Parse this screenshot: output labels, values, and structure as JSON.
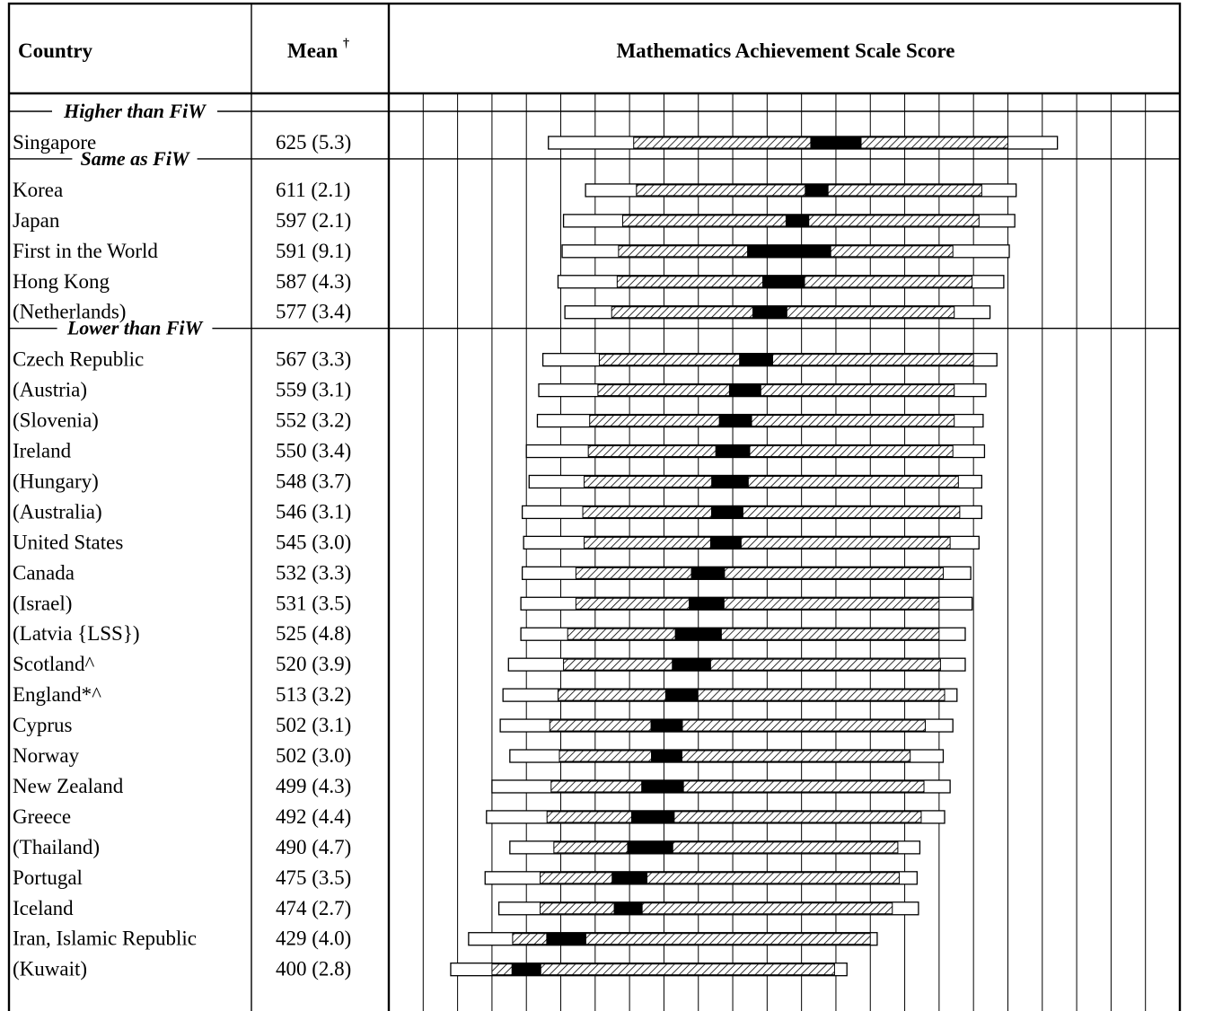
{
  "headers": {
    "country": "Country",
    "mean": "Mean",
    "mean_mark": "†",
    "chart": "Mathematics Achievement Scale Score"
  },
  "colors": {
    "line": "#000000",
    "band": "#ffffff",
    "hatch": "#000000",
    "ci": "#000000"
  },
  "chart_data": {
    "type": "percentile-bar",
    "title": "Mathematics Achievement Scale Score",
    "xlim": [
      300,
      875
    ],
    "gridlines": [
      300,
      325,
      350,
      375,
      400,
      425,
      450,
      475,
      500,
      525,
      550,
      575,
      600,
      625,
      650,
      675,
      700,
      725,
      750,
      775,
      800,
      825,
      850
    ],
    "groups": [
      {
        "label": "Higher than FiW",
        "rows": [
          {
            "country": "Singapore",
            "mean_text": "625 (5.3)",
            "mean": 625,
            "se": 5.3,
            "p5": 416,
            "p25": 478,
            "p75": 750,
            "p95": 786
          }
        ]
      },
      {
        "label": "Same as FiW",
        "rows": [
          {
            "country": "Korea",
            "mean_text": "611 (2.1)",
            "mean": 611,
            "se": 2.1,
            "p5": 443,
            "p25": 480,
            "p75": 731,
            "p95": 756
          },
          {
            "country": "Japan",
            "mean_text": "597 (2.1)",
            "mean": 597,
            "se": 2.1,
            "p5": 427,
            "p25": 470,
            "p75": 729,
            "p95": 755
          },
          {
            "country": "First in the World",
            "mean_text": "591 (9.1)",
            "mean": 591,
            "se": 9.1,
            "p5": 426,
            "p25": 467,
            "p75": 710,
            "p95": 751
          },
          {
            "country": "Hong Kong",
            "mean_text": "587 (4.3)",
            "mean": 587,
            "se": 4.3,
            "p5": 423,
            "p25": 466,
            "p75": 724,
            "p95": 747
          },
          {
            "country": "(Netherlands)",
            "mean_text": "577 (3.4)",
            "mean": 577,
            "se": 3.4,
            "p5": 428,
            "p25": 462,
            "p75": 711,
            "p95": 737
          }
        ]
      },
      {
        "label": "Lower than FiW",
        "rows": [
          {
            "country": "Czech Republic",
            "mean_text": "567 (3.3)",
            "mean": 567,
            "se": 3.3,
            "p5": 412,
            "p25": 453,
            "p75": 725,
            "p95": 742
          },
          {
            "country": "(Austria)",
            "mean_text": "559 (3.1)",
            "mean": 559,
            "se": 3.1,
            "p5": 409,
            "p25": 452,
            "p75": 711,
            "p95": 734
          },
          {
            "country": "(Slovenia)",
            "mean_text": "552 (3.2)",
            "mean": 552,
            "se": 3.2,
            "p5": 408,
            "p25": 446,
            "p75": 711,
            "p95": 732
          },
          {
            "country": "Ireland",
            "mean_text": "550 (3.4)",
            "mean": 550,
            "se": 3.4,
            "p5": 400,
            "p25": 445,
            "p75": 710,
            "p95": 733
          },
          {
            "country": "(Hungary)",
            "mean_text": "548 (3.7)",
            "mean": 548,
            "se": 3.7,
            "p5": 402,
            "p25": 442,
            "p75": 714,
            "p95": 731
          },
          {
            "country": "(Australia)",
            "mean_text": "546 (3.1)",
            "mean": 546,
            "se": 3.1,
            "p5": 397,
            "p25": 441,
            "p75": 715,
            "p95": 731
          },
          {
            "country": "United States",
            "mean_text": "545 (3.0)",
            "mean": 545,
            "se": 3.0,
            "p5": 398,
            "p25": 442,
            "p75": 708,
            "p95": 729
          },
          {
            "country": "Canada",
            "mean_text": "532 (3.3)",
            "mean": 532,
            "se": 3.3,
            "p5": 397,
            "p25": 436,
            "p75": 703,
            "p95": 723
          },
          {
            "country": "(Israel)",
            "mean_text": "531 (3.5)",
            "mean": 531,
            "se": 3.5,
            "p5": 396,
            "p25": 436,
            "p75": 700,
            "p95": 724
          },
          {
            "country": "(Latvia {LSS})",
            "mean_text": "525 (4.8)",
            "mean": 525,
            "se": 4.8,
            "p5": 396,
            "p25": 430,
            "p75": 700,
            "p95": 719
          },
          {
            "country": "Scotland^",
            "mean_text": "520 (3.9)",
            "mean": 520,
            "se": 3.9,
            "p5": 387,
            "p25": 427,
            "p75": 701,
            "p95": 719
          },
          {
            "country": "England*^",
            "mean_text": "513 (3.2)",
            "mean": 513,
            "se": 3.2,
            "p5": 383,
            "p25": 423,
            "p75": 704,
            "p95": 713
          },
          {
            "country": "Cyprus",
            "mean_text": "502 (3.1)",
            "mean": 502,
            "se": 3.1,
            "p5": 381,
            "p25": 417,
            "p75": 690,
            "p95": 710
          },
          {
            "country": "Norway",
            "mean_text": "502 (3.0)",
            "mean": 502,
            "se": 3.0,
            "p5": 388,
            "p25": 424,
            "p75": 679,
            "p95": 703
          },
          {
            "country": "New Zealand",
            "mean_text": "499 (4.3)",
            "mean": 499,
            "se": 4.3,
            "p5": 375,
            "p25": 418,
            "p75": 689,
            "p95": 708
          },
          {
            "country": "Greece",
            "mean_text": "492 (4.4)",
            "mean": 492,
            "se": 4.4,
            "p5": 371,
            "p25": 415,
            "p75": 687,
            "p95": 704
          },
          {
            "country": "(Thailand)",
            "mean_text": "490 (4.7)",
            "mean": 490,
            "se": 4.7,
            "p5": 388,
            "p25": 420,
            "p75": 670,
            "p95": 686
          },
          {
            "country": "Portugal",
            "mean_text": "475 (3.5)",
            "mean": 475,
            "se": 3.5,
            "p5": 370,
            "p25": 410,
            "p75": 671,
            "p95": 684
          },
          {
            "country": "Iceland",
            "mean_text": "474 (2.7)",
            "mean": 474,
            "se": 2.7,
            "p5": 380,
            "p25": 410,
            "p75": 666,
            "p95": 685
          },
          {
            "country": "Iran, Islamic Republic",
            "mean_text": "429 (4.0)",
            "mean": 429,
            "se": 4.0,
            "p5": 358,
            "p25": 390,
            "p75": 650,
            "p95": 655
          },
          {
            "country": "(Kuwait)",
            "mean_text": "400 (2.8)",
            "mean": 400,
            "se": 2.8,
            "p5": 345,
            "p25": 375,
            "p75": 624,
            "p95": 633
          }
        ]
      }
    ]
  }
}
